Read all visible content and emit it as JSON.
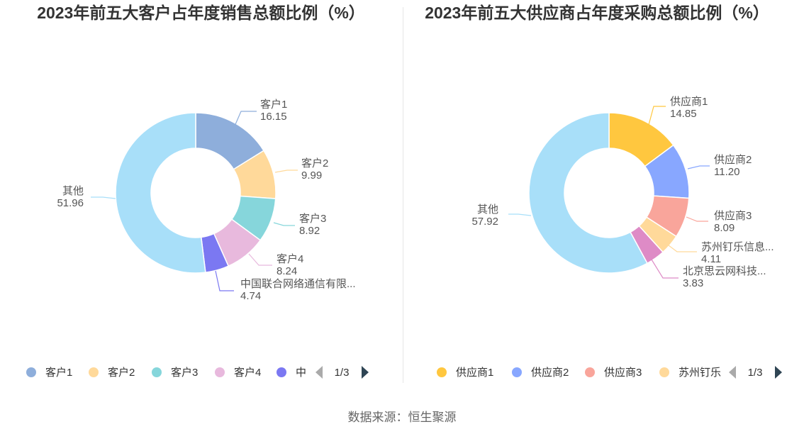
{
  "source": "数据来源：恒生聚源",
  "chart_data": [
    {
      "type": "pie",
      "title": "2023年前五大客户占年度销售总额比例（%）",
      "slices": [
        {
          "name": "客户1",
          "label": "客户1",
          "value": 16.15,
          "value_text": "16.15",
          "color": "#8eaedb"
        },
        {
          "name": "客户2",
          "label": "客户2",
          "value": 9.99,
          "value_text": "9.99",
          "color": "#ffd99a"
        },
        {
          "name": "客户3",
          "label": "客户3",
          "value": 8.92,
          "value_text": "8.92",
          "color": "#86d6db"
        },
        {
          "name": "客户4",
          "label": "客户4",
          "value": 8.24,
          "value_text": "8.24",
          "color": "#e8b9dd"
        },
        {
          "name": "中国联合网络通信有限公司",
          "label": "中国联合网络通信有限...",
          "value": 4.74,
          "value_text": "4.74",
          "color": "#7b78f2"
        },
        {
          "name": "其他",
          "label": "其他",
          "value": 51.96,
          "value_text": "51.96",
          "color": "#a8dff9"
        }
      ],
      "legend": {
        "position": "bottom",
        "items": [
          {
            "text": "客户1",
            "color": "#8eaedb"
          },
          {
            "text": "客户2",
            "color": "#ffd99a"
          },
          {
            "text": "客户3",
            "color": "#86d6db"
          },
          {
            "text": "客户4",
            "color": "#e8b9dd"
          },
          {
            "text": "中",
            "color": "#7b78f2"
          }
        ],
        "page": "1/3"
      }
    },
    {
      "type": "pie",
      "title": "2023年前五大供应商占年度采购总额比例（%）",
      "slices": [
        {
          "name": "供应商1",
          "label": "供应商1",
          "value": 14.85,
          "value_text": "14.85",
          "color": "#ffc73f"
        },
        {
          "name": "供应商2",
          "label": "供应商2",
          "value": 11.2,
          "value_text": "11.20",
          "color": "#88a7ff"
        },
        {
          "name": "供应商3",
          "label": "供应商3",
          "value": 8.09,
          "value_text": "8.09",
          "color": "#f9a59b"
        },
        {
          "name": "苏州钉乐信息",
          "label": "苏州钉乐信息...",
          "value": 4.11,
          "value_text": "4.11",
          "color": "#ffd99a"
        },
        {
          "name": "北京思云网科技",
          "label": "北京思云网科技...",
          "value": 3.83,
          "value_text": "3.83",
          "color": "#de8bc6"
        },
        {
          "name": "其他",
          "label": "其他",
          "value": 57.92,
          "value_text": "57.92",
          "color": "#a8dff9"
        }
      ],
      "legend": {
        "position": "bottom",
        "items": [
          {
            "text": "供应商1",
            "color": "#ffc73f"
          },
          {
            "text": "供应商2",
            "color": "#88a7ff"
          },
          {
            "text": "供应商3",
            "color": "#f9a59b"
          },
          {
            "text": "苏州钉乐",
            "color": "#ffd99a"
          }
        ],
        "page": "1/3"
      }
    }
  ]
}
